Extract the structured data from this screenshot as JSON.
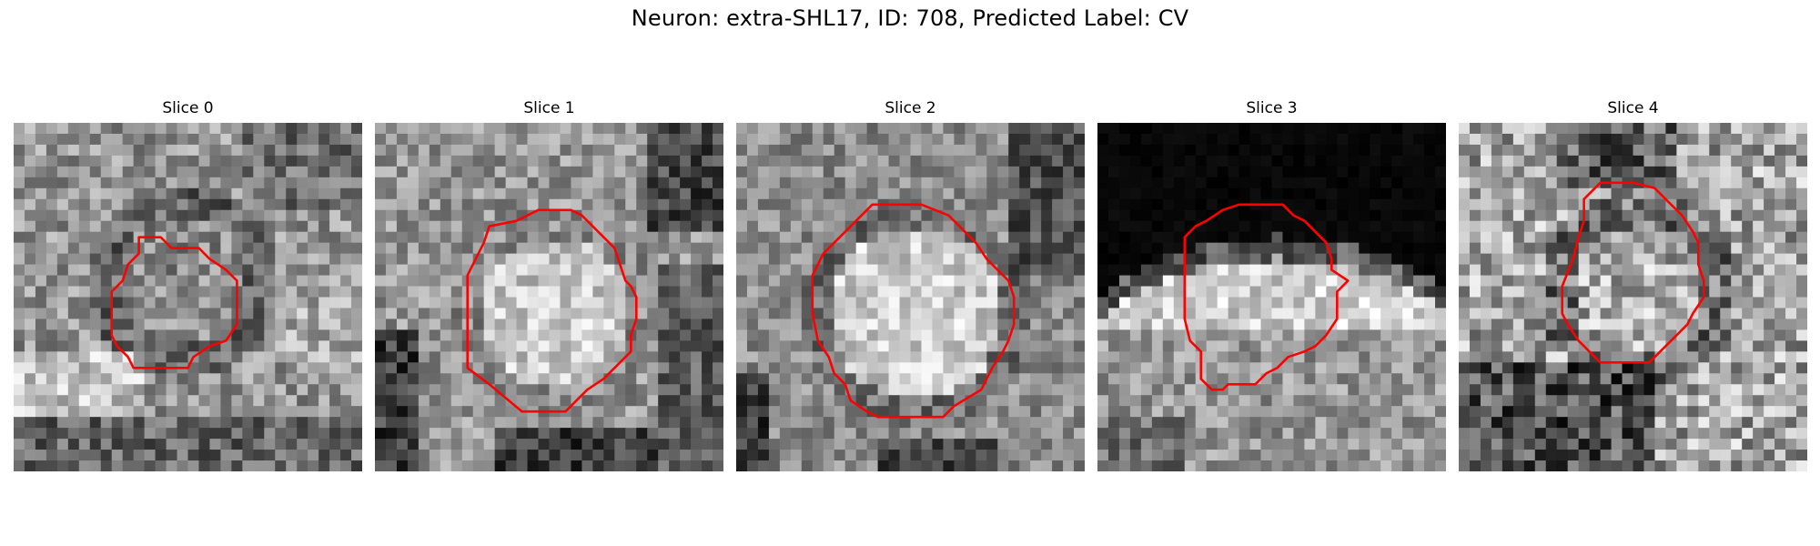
{
  "figure": {
    "title": "Neuron: extra-SHL17, ID: 708, Predicted Label: CV"
  },
  "panels": [
    {
      "title": "Slice 0"
    },
    {
      "title": "Slice 1"
    },
    {
      "title": "Slice 2"
    },
    {
      "title": "Slice 3"
    },
    {
      "title": "Slice 4"
    }
  ],
  "colors": {
    "contour": "#ff0000",
    "background": "#ffffff"
  }
}
